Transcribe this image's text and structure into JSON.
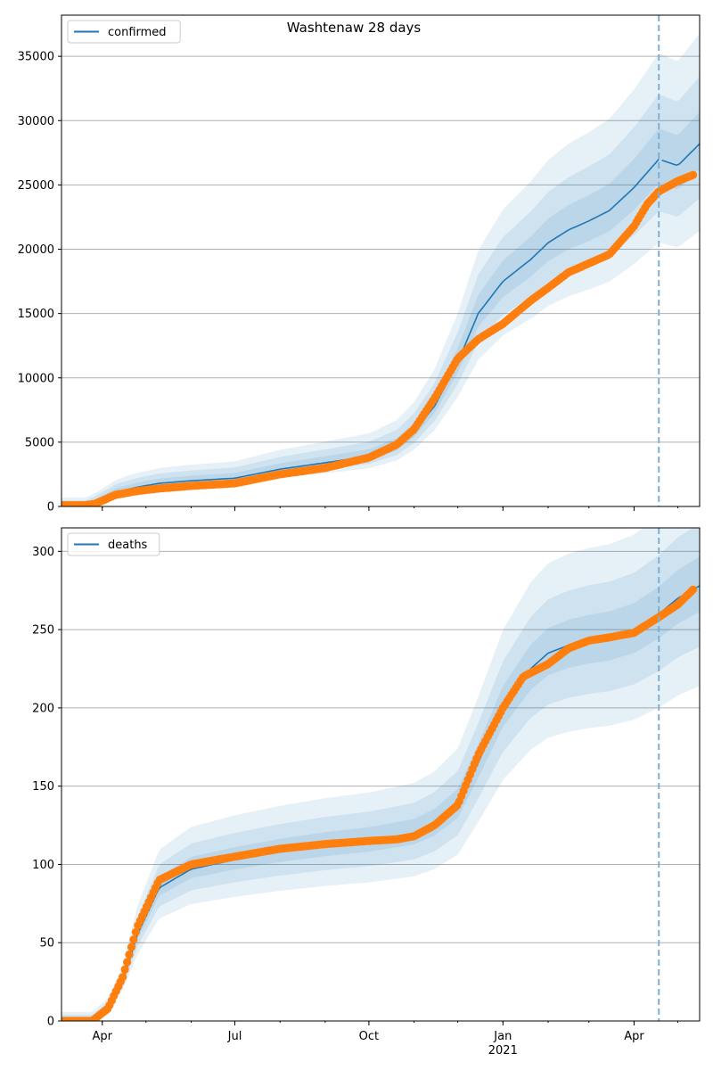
{
  "figure": {
    "title": "Washtenaw 28 days"
  },
  "colors": {
    "model": "#1f77b4",
    "observed": "#ff7f0e",
    "band": "#1f77b4",
    "grid": "#b0b0b0",
    "vline": "#7fb0d4"
  },
  "x_axis": {
    "tick_labels": [
      {
        "date": "2020-04-01",
        "label": "Apr",
        "sub": ""
      },
      {
        "date": "2020-07-01",
        "label": "Jul",
        "sub": ""
      },
      {
        "date": "2020-10-01",
        "label": "Oct",
        "sub": ""
      },
      {
        "date": "2021-01-01",
        "label": "Jan",
        "sub": "2021"
      },
      {
        "date": "2021-04-01",
        "label": "Apr",
        "sub": ""
      }
    ],
    "xlim": [
      "2020-03-04",
      "2021-05-16"
    ],
    "forecast_start": "2021-04-18"
  },
  "chart_data": [
    {
      "type": "line",
      "legend": "confirmed",
      "legend_position": "top-left",
      "grid": "y",
      "ylim": [
        0,
        38200
      ],
      "yticks": [
        0,
        5000,
        10000,
        15000,
        20000,
        25000,
        30000,
        35000
      ],
      "model": {
        "dates": [
          "2020-03-04",
          "2020-03-20",
          "2020-03-27",
          "2020-04-10",
          "2020-04-25",
          "2020-05-10",
          "2020-06-01",
          "2020-07-01",
          "2020-08-01",
          "2020-09-01",
          "2020-10-01",
          "2020-10-20",
          "2020-11-01",
          "2020-11-15",
          "2020-12-01",
          "2020-12-15",
          "2021-01-01",
          "2021-01-20",
          "2021-02-01",
          "2021-02-15",
          "2021-03-01",
          "2021-03-15",
          "2021-04-01",
          "2021-04-18",
          "2021-05-01",
          "2021-05-16"
        ],
        "values": [
          0,
          0,
          300,
          1100,
          1500,
          1800,
          2000,
          2200,
          2900,
          3400,
          3900,
          4700,
          5800,
          7800,
          11200,
          15000,
          17500,
          19200,
          20500,
          21500,
          22200,
          23000,
          24800,
          27000,
          26500,
          28200
        ]
      },
      "band_spread": [
        {
          "low": 0.93,
          "high": 1.08
        },
        {
          "low": 0.85,
          "high": 1.17
        },
        {
          "low": 0.76,
          "high": 1.28
        }
      ],
      "observed": {
        "dates": [
          "2020-03-04",
          "2020-03-20",
          "2020-03-27",
          "2020-04-10",
          "2020-04-25",
          "2020-05-10",
          "2020-06-01",
          "2020-07-01",
          "2020-08-01",
          "2020-09-01",
          "2020-10-01",
          "2020-10-20",
          "2020-11-01",
          "2020-11-15",
          "2020-12-01",
          "2020-12-15",
          "2021-01-01",
          "2021-01-20",
          "2021-02-01",
          "2021-02-15",
          "2021-03-01",
          "2021-03-15",
          "2021-04-01",
          "2021-04-10",
          "2021-04-18",
          "2021-05-01",
          "2021-05-12"
        ],
        "values": [
          100,
          100,
          200,
          900,
          1200,
          1400,
          1600,
          1800,
          2500,
          3000,
          3800,
          4800,
          6000,
          8400,
          11500,
          13000,
          14200,
          16000,
          17000,
          18200,
          18900,
          19600,
          21800,
          23500,
          24500,
          25300,
          25800
        ]
      }
    },
    {
      "type": "line",
      "legend": "deaths",
      "legend_position": "top-left",
      "grid": "y",
      "ylim": [
        0,
        315
      ],
      "yticks": [
        0,
        50,
        100,
        150,
        200,
        250,
        300
      ],
      "model": {
        "dates": [
          "2020-03-04",
          "2020-03-25",
          "2020-04-05",
          "2020-04-15",
          "2020-04-25",
          "2020-05-10",
          "2020-06-01",
          "2020-07-01",
          "2020-08-01",
          "2020-09-01",
          "2020-10-01",
          "2020-10-20",
          "2020-11-01",
          "2020-11-15",
          "2020-12-01",
          "2020-12-15",
          "2021-01-01",
          "2021-01-20",
          "2021-02-01",
          "2021-02-15",
          "2021-03-01",
          "2021-03-15",
          "2021-04-01",
          "2021-04-18",
          "2021-05-01",
          "2021-05-16"
        ],
        "values": [
          0,
          0,
          8,
          25,
          55,
          85,
          97,
          103,
          108,
          112,
          115,
          118,
          120,
          126,
          138,
          165,
          200,
          225,
          235,
          240,
          243,
          245,
          250,
          260,
          270,
          278
        ]
      },
      "band_spread": [
        {
          "low": 0.94,
          "high": 1.06
        },
        {
          "low": 0.86,
          "high": 1.13
        },
        {
          "low": 0.77,
          "high": 1.22
        }
      ],
      "observed": {
        "dates": [
          "2020-03-04",
          "2020-03-25",
          "2020-04-05",
          "2020-04-15",
          "2020-04-25",
          "2020-05-10",
          "2020-06-01",
          "2020-07-01",
          "2020-08-01",
          "2020-09-01",
          "2020-10-01",
          "2020-10-20",
          "2020-11-01",
          "2020-11-15",
          "2020-12-01",
          "2020-12-15",
          "2021-01-01",
          "2021-01-15",
          "2021-02-01",
          "2021-02-15",
          "2021-03-01",
          "2021-03-15",
          "2021-04-01",
          "2021-04-18",
          "2021-05-01",
          "2021-05-12"
        ],
        "values": [
          0,
          0,
          8,
          28,
          60,
          90,
          100,
          105,
          110,
          113,
          115,
          116,
          118,
          125,
          138,
          170,
          200,
          220,
          228,
          238,
          243,
          245,
          248,
          258,
          266,
          276
        ]
      }
    }
  ]
}
